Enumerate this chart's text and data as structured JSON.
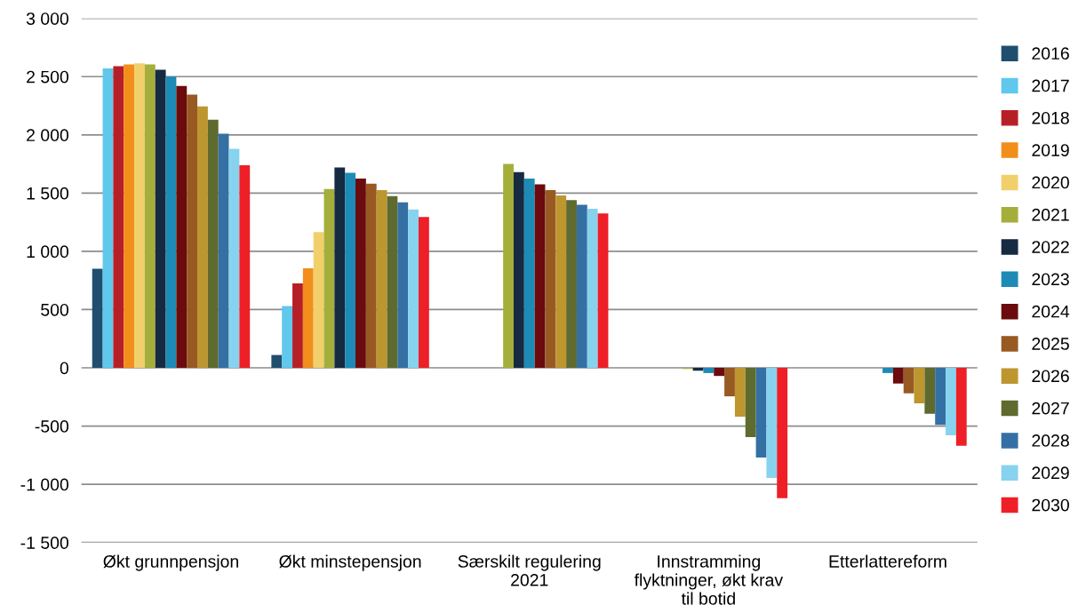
{
  "chart_data": {
    "type": "bar",
    "categories": [
      "Økt grunnpensjon",
      "Økt minstepensjon",
      "Særskilt regulering\n2021",
      "Innstramming\nflyktninger, økt krav\ntil botid",
      "Etterlattereform"
    ],
    "series": [
      {
        "name": "2016",
        "color": "#1f4e6e",
        "values": [
          850,
          110,
          null,
          null,
          null
        ]
      },
      {
        "name": "2017",
        "color": "#5fc8ec",
        "values": [
          2570,
          530,
          null,
          null,
          null
        ]
      },
      {
        "name": "2018",
        "color": "#b71f26",
        "values": [
          2590,
          725,
          null,
          null,
          null
        ]
      },
      {
        "name": "2019",
        "color": "#f28e1c",
        "values": [
          2605,
          855,
          null,
          null,
          null
        ]
      },
      {
        "name": "2020",
        "color": "#f1d06c",
        "values": [
          2615,
          1165,
          null,
          null,
          null
        ]
      },
      {
        "name": "2021",
        "color": "#a5ae3a",
        "values": [
          2605,
          1535,
          1750,
          -10,
          null
        ]
      },
      {
        "name": "2022",
        "color": "#162a42",
        "values": [
          2560,
          1720,
          1680,
          -25,
          null
        ]
      },
      {
        "name": "2023",
        "color": "#1d8bb5",
        "values": [
          2500,
          1675,
          1625,
          -45,
          -45
        ]
      },
      {
        "name": "2024",
        "color": "#6b0b0e",
        "values": [
          2420,
          1625,
          1575,
          -70,
          -135
        ]
      },
      {
        "name": "2025",
        "color": "#985923",
        "values": [
          2345,
          1580,
          1525,
          -245,
          -220
        ]
      },
      {
        "name": "2026",
        "color": "#bd962f",
        "values": [
          2245,
          1525,
          1480,
          -420,
          -305
        ]
      },
      {
        "name": "2027",
        "color": "#5f6a2e",
        "values": [
          2130,
          1475,
          1440,
          -595,
          -395
        ]
      },
      {
        "name": "2028",
        "color": "#3470a3",
        "values": [
          2010,
          1420,
          1400,
          -770,
          -490
        ]
      },
      {
        "name": "2029",
        "color": "#87d3ef",
        "values": [
          1880,
          1360,
          1365,
          -945,
          -580
        ]
      },
      {
        "name": "2030",
        "color": "#ee1f27",
        "values": [
          1740,
          1295,
          1325,
          -1120,
          -670
        ]
      }
    ],
    "ylim": [
      -1500,
      3000
    ],
    "yticks": [
      {
        "value": -1500,
        "label": "-1 500"
      },
      {
        "value": -1000,
        "label": "-1 000"
      },
      {
        "value": -500,
        "label": "-500"
      },
      0,
      500,
      {
        "value": 1000,
        "label": "1 000"
      },
      {
        "value": 1500,
        "label": "1 500"
      },
      {
        "value": 2000,
        "label": "2 000"
      },
      {
        "value": 2500,
        "label": "2 500"
      },
      {
        "value": 3000,
        "label": "3 000"
      }
    ],
    "grid": "y",
    "legend": "right"
  }
}
